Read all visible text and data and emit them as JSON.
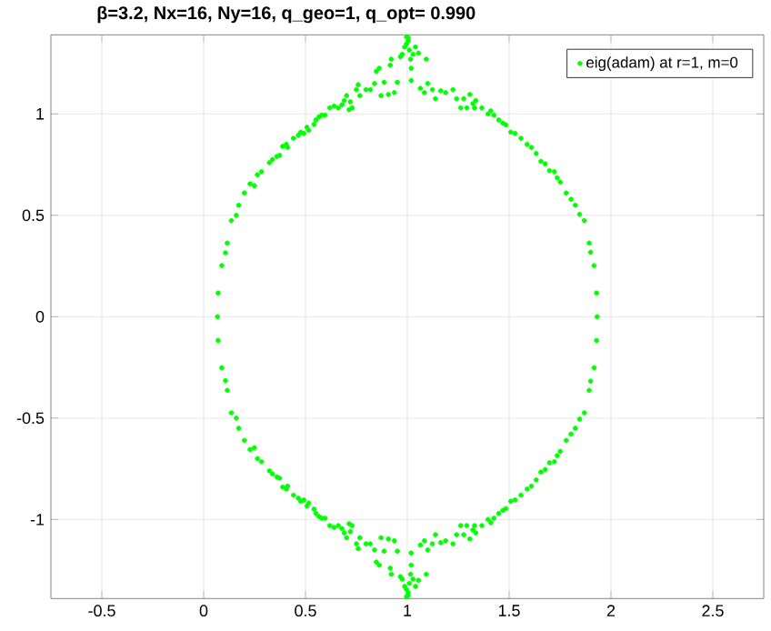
{
  "chart_data": {
    "type": "scatter",
    "title": "β=3.2, Nx=16, Ny=16, q_geo=1, q_opt= 0.990",
    "xlim": [
      -0.75,
      2.75
    ],
    "ylim": [
      -1.39,
      1.39
    ],
    "xticks": [
      -0.5,
      0,
      0.5,
      1,
      1.5,
      2,
      2.5
    ],
    "yticks": [
      -1,
      -0.5,
      0,
      0.5,
      1
    ],
    "grid": true,
    "legend": "top right",
    "series": [
      {
        "name": "eig(adam) at r=1, m=0",
        "color": "#00ff00",
        "x": [
          0.107,
          0.116,
          0.136,
          0.16,
          0.172,
          0.2,
          0.228,
          0.249,
          0.264,
          0.284,
          0.323,
          0.338,
          0.359,
          0.373,
          0.388,
          0.406,
          0.412,
          0.441,
          0.465,
          0.477,
          0.492,
          0.507,
          0.516,
          0.542,
          0.551,
          0.566,
          0.58,
          0.596,
          0.619,
          0.64,
          0.661,
          0.679,
          0.69,
          0.702,
          0.72,
          0.729,
          0.714,
          0.75,
          0.759,
          0.767,
          0.797,
          0.818,
          0.839,
          0.848,
          0.862,
          0.871,
          0.886,
          0.907,
          0.916,
          0.921,
          0.936,
          0.951,
          0.966,
          0.975,
          0.987,
          0.996,
          1.004,
          0.996,
          1.01,
          1.016,
          1.019,
          1.019,
          1.004,
          1.028,
          1.04,
          1.055,
          1.064,
          1.084,
          1.1,
          1.093,
          1.123,
          1.138,
          1.164,
          1.188,
          1.224,
          1.242,
          1.262,
          1.277,
          1.292,
          1.307,
          1.322,
          1.33,
          1.336,
          1.366,
          1.396,
          1.41,
          1.425,
          1.449,
          1.469,
          1.484,
          1.508,
          1.529,
          1.558,
          1.588,
          1.609,
          1.633,
          1.656,
          1.677,
          1.698,
          1.722,
          1.736,
          1.751,
          1.78,
          1.804,
          1.825,
          1.846,
          1.869,
          1.893,
          1.9,
          1.917,
          1.929,
          0.089,
          0.071,
          0.107,
          0.116,
          0.136,
          0.16,
          0.172,
          0.2,
          0.228,
          0.249,
          0.264,
          0.284,
          0.323,
          0.338,
          0.359,
          0.373,
          0.388,
          0.406,
          0.412,
          0.441,
          0.465,
          0.477,
          0.492,
          0.507,
          0.516,
          0.542,
          0.551,
          0.566,
          0.58,
          0.596,
          0.619,
          0.64,
          0.661,
          0.679,
          0.69,
          0.702,
          0.72,
          0.729,
          0.714,
          0.75,
          0.759,
          0.767,
          0.797,
          0.818,
          0.839,
          0.848,
          0.862,
          0.871,
          0.886,
          0.907,
          0.916,
          0.921,
          0.936,
          0.951,
          0.966,
          0.975,
          0.987,
          0.996,
          1.004,
          0.996,
          1.01,
          1.016,
          1.019,
          1.019,
          1.004,
          1.028,
          1.04,
          1.055,
          1.064,
          1.084,
          1.1,
          1.093,
          1.123,
          1.138,
          1.164,
          1.188,
          1.224,
          1.242,
          1.262,
          1.277,
          1.292,
          1.307,
          1.322,
          1.33,
          1.336,
          1.366,
          1.396,
          1.41,
          1.425,
          1.449,
          1.469,
          1.484,
          1.508,
          1.529,
          1.558,
          1.588,
          1.609,
          1.633,
          1.656,
          1.677,
          1.698,
          1.722,
          1.736,
          1.751,
          1.78,
          1.804,
          1.825,
          1.846,
          1.869,
          1.893,
          1.9,
          1.917,
          1.929,
          0.089,
          0.071,
          0.068,
          1.932
        ],
        "values": [
          0.315,
          0.363,
          0.474,
          0.5,
          0.55,
          0.61,
          0.655,
          0.646,
          0.7,
          0.715,
          0.76,
          0.775,
          0.79,
          0.796,
          0.84,
          0.85,
          0.835,
          0.88,
          0.895,
          0.91,
          0.904,
          0.934,
          0.919,
          0.949,
          0.97,
          0.985,
          0.994,
          0.994,
          1.03,
          1.039,
          1.03,
          1.045,
          1.066,
          1.09,
          1.06,
          1.03,
          1.021,
          1.12,
          1.144,
          1.09,
          1.12,
          1.12,
          1.15,
          1.21,
          1.225,
          1.09,
          1.156,
          1.096,
          1.24,
          1.27,
          1.105,
          1.156,
          1.282,
          1.294,
          1.33,
          1.38,
          1.375,
          1.345,
          1.315,
          1.27,
          1.225,
          1.165,
          1.36,
          1.294,
          1.33,
          1.3,
          1.126,
          1.105,
          1.15,
          1.27,
          1.12,
          1.075,
          1.114,
          1.105,
          1.12,
          1.075,
          1.03,
          1.075,
          1.03,
          1.096,
          1.051,
          1.03,
          1.066,
          1.03,
          1.0,
          1.015,
          0.994,
          0.97,
          0.955,
          0.946,
          0.91,
          0.904,
          0.88,
          0.85,
          0.835,
          0.805,
          0.766,
          0.754,
          0.72,
          0.715,
          0.685,
          0.664,
          0.61,
          0.579,
          0.55,
          0.505,
          0.474,
          0.363,
          0.318,
          0.252,
          0.117,
          0.252,
          0.117,
          -0.315,
          -0.363,
          -0.474,
          -0.5,
          -0.55,
          -0.61,
          -0.655,
          -0.646,
          -0.7,
          -0.715,
          -0.76,
          -0.775,
          -0.79,
          -0.796,
          -0.84,
          -0.85,
          -0.835,
          -0.88,
          -0.895,
          -0.91,
          -0.904,
          -0.934,
          -0.919,
          -0.949,
          -0.97,
          -0.985,
          -0.994,
          -0.994,
          -1.03,
          -1.039,
          -1.03,
          -1.045,
          -1.066,
          -1.09,
          -1.06,
          -1.03,
          -1.021,
          -1.12,
          -1.144,
          -1.09,
          -1.12,
          -1.12,
          -1.15,
          -1.21,
          -1.225,
          -1.09,
          -1.156,
          -1.096,
          -1.24,
          -1.27,
          -1.105,
          -1.156,
          -1.282,
          -1.294,
          -1.33,
          -1.38,
          -1.375,
          -1.345,
          -1.315,
          -1.27,
          -1.225,
          -1.165,
          -1.36,
          -1.294,
          -1.33,
          -1.3,
          -1.126,
          -1.105,
          -1.15,
          -1.27,
          -1.12,
          -1.075,
          -1.114,
          -1.105,
          -1.12,
          -1.075,
          -1.03,
          -1.075,
          -1.03,
          -1.096,
          -1.051,
          -1.03,
          -1.066,
          -1.03,
          -1.0,
          -1.015,
          -0.994,
          -0.97,
          -0.955,
          -0.946,
          -0.91,
          -0.904,
          -0.88,
          -0.85,
          -0.835,
          -0.805,
          -0.766,
          -0.754,
          -0.72,
          -0.715,
          -0.685,
          -0.664,
          -0.61,
          -0.579,
          -0.55,
          -0.505,
          -0.474,
          -0.363,
          -0.318,
          -0.252,
          -0.117,
          -0.252,
          -0.117,
          0,
          0
        ]
      }
    ]
  }
}
